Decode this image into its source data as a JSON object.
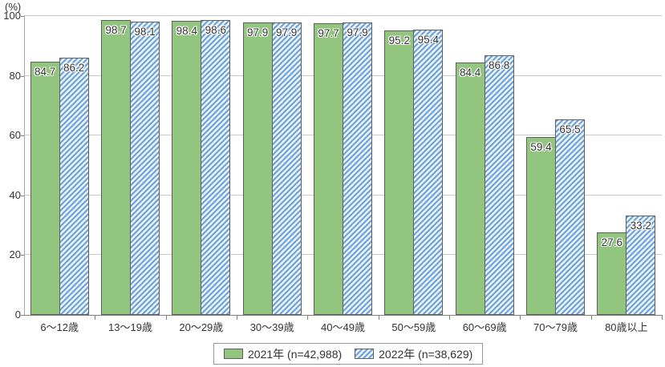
{
  "chart_data": {
    "type": "bar",
    "title": "",
    "unit_label": "(%)",
    "xlabel": "",
    "ylabel": "(%)",
    "ylim": [
      0,
      100
    ],
    "yticks": [
      0,
      20,
      40,
      60,
      80,
      100
    ],
    "grid": true,
    "legend_position": "bottom",
    "categories": [
      "6～12歳",
      "13～19歳",
      "20～29歳",
      "30～39歳",
      "40～49歳",
      "50～59歳",
      "60～69歳",
      "70～79歳",
      "80歳以上"
    ],
    "series": [
      {
        "name": "2021年 (n=42,988)",
        "pattern": "solid",
        "color": "#92c67e",
        "values": [
          84.7,
          98.7,
          98.4,
          97.9,
          97.7,
          95.2,
          84.4,
          59.4,
          27.6
        ]
      },
      {
        "name": "2022年 (n=38,629)",
        "pattern": "diagonal-stripes",
        "color": "#6ea2db",
        "stripe_background": "#eaf2fb",
        "values": [
          86.2,
          98.1,
          98.6,
          97.9,
          97.9,
          95.4,
          86.8,
          65.5,
          33.2
        ]
      }
    ]
  },
  "colors": {
    "bar_border": "#5f5f5f",
    "gridline": "#c9c9c9",
    "axis": "#808080",
    "text": "#333333",
    "legend_border": "#999999",
    "background": "#ffffff"
  }
}
